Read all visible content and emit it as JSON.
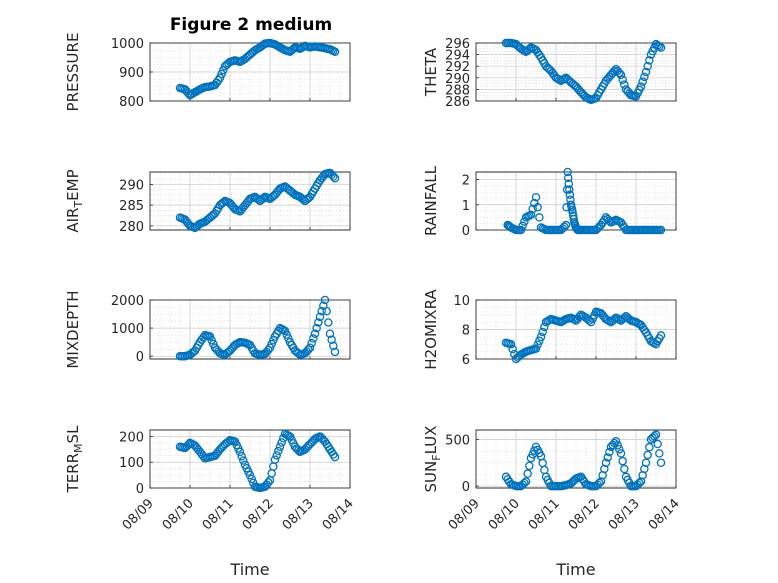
{
  "figure_title": "Figure 2 medium",
  "colors": {
    "marker": "#0072BD",
    "axis": "#262626",
    "grid": "#d9d9d9",
    "background": "#ffffff"
  },
  "chart_data": [
    {
      "type": "scatter",
      "ylabel": "PRESSURE",
      "ylabel_sub": "",
      "ylabel_tail": "",
      "xlabel": "",
      "xlim": [
        "08/09",
        "08/14"
      ],
      "xticks": [
        "08/09",
        "08/10",
        "08/11",
        "08/12",
        "08/13",
        "08/14"
      ],
      "x_tick_labels_shown": false,
      "ylim": [
        800,
        1000
      ],
      "yticks": [
        800,
        900,
        1000
      ],
      "grid": true,
      "minor_grid": true,
      "x": [
        "08/09 18:00",
        "08/09 21:00",
        "08/10 00:00",
        "08/10 03:00",
        "08/10 06:00",
        "08/10 09:00",
        "08/10 12:00",
        "08/10 15:00",
        "08/10 18:00",
        "08/10 21:00",
        "08/11 00:00",
        "08/11 03:00",
        "08/11 06:00",
        "08/11 09:00",
        "08/11 12:00",
        "08/11 15:00",
        "08/11 18:00",
        "08/11 21:00",
        "08/12 00:00",
        "08/12 03:00",
        "08/12 06:00",
        "08/12 09:00",
        "08/12 12:00",
        "08/12 15:00",
        "08/12 18:00",
        "08/12 21:00",
        "08/13 00:00",
        "08/13 03:00",
        "08/13 06:00",
        "08/13 09:00",
        "08/13 12:00",
        "08/13 15:00"
      ],
      "y": [
        845,
        840,
        820,
        830,
        840,
        848,
        850,
        855,
        880,
        920,
        935,
        940,
        935,
        945,
        960,
        975,
        985,
        998,
        1000,
        995,
        985,
        975,
        970,
        985,
        980,
        990,
        985,
        988,
        985,
        982,
        978,
        970
      ]
    },
    {
      "type": "scatter",
      "ylabel": "THETA",
      "ylabel_sub": "",
      "ylabel_tail": "",
      "xlabel": "",
      "xlim": [
        "08/09",
        "08/14"
      ],
      "xticks": [
        "08/09",
        "08/10",
        "08/11",
        "08/12",
        "08/13",
        "08/14"
      ],
      "x_tick_labels_shown": false,
      "ylim": [
        286,
        296
      ],
      "yticks": [
        286,
        288,
        290,
        292,
        294,
        296
      ],
      "grid": true,
      "minor_grid": true,
      "x": [
        "08/09 18:00",
        "08/09 21:00",
        "08/10 00:00",
        "08/10 03:00",
        "08/10 06:00",
        "08/10 09:00",
        "08/10 12:00",
        "08/10 15:00",
        "08/10 18:00",
        "08/10 21:00",
        "08/11 00:00",
        "08/11 03:00",
        "08/11 06:00",
        "08/11 09:00",
        "08/11 12:00",
        "08/11 15:00",
        "08/11 18:00",
        "08/11 21:00",
        "08/12 00:00",
        "08/12 03:00",
        "08/12 06:00",
        "08/12 09:00",
        "08/12 12:00",
        "08/12 15:00",
        "08/12 18:00",
        "08/12 21:00",
        "08/13 00:00",
        "08/13 03:00",
        "08/13 06:00",
        "08/13 09:00",
        "08/13 12:00",
        "08/13 15:00"
      ],
      "y": [
        296,
        296,
        295.8,
        295,
        294.5,
        295.2,
        294.8,
        293.5,
        292,
        291.2,
        290,
        289.5,
        290,
        289.2,
        288.5,
        287.5,
        286.6,
        286.2,
        286.5,
        288,
        289.5,
        290.5,
        291.5,
        290.5,
        288,
        287,
        286.8,
        288.5,
        291,
        294,
        295.8,
        295.2
      ]
    },
    {
      "type": "scatter",
      "ylabel": "AIR",
      "ylabel_sub": "T",
      "ylabel_tail": "EMP",
      "xlabel": "",
      "xlim": [
        "08/09",
        "08/14"
      ],
      "xticks": [
        "08/09",
        "08/10",
        "08/11",
        "08/12",
        "08/13",
        "08/14"
      ],
      "x_tick_labels_shown": false,
      "ylim": [
        279,
        293
      ],
      "yticks": [
        280,
        285,
        290
      ],
      "grid": true,
      "minor_grid": true,
      "x": [
        "08/09 18:00",
        "08/09 21:00",
        "08/10 00:00",
        "08/10 03:00",
        "08/10 06:00",
        "08/10 09:00",
        "08/10 12:00",
        "08/10 15:00",
        "08/10 18:00",
        "08/10 21:00",
        "08/11 00:00",
        "08/11 03:00",
        "08/11 06:00",
        "08/11 09:00",
        "08/11 12:00",
        "08/11 15:00",
        "08/11 18:00",
        "08/11 21:00",
        "08/12 00:00",
        "08/12 03:00",
        "08/12 06:00",
        "08/12 09:00",
        "08/12 12:00",
        "08/12 15:00",
        "08/12 18:00",
        "08/12 21:00",
        "08/13 00:00",
        "08/13 03:00",
        "08/13 06:00",
        "08/13 09:00",
        "08/13 12:00",
        "08/13 15:00"
      ],
      "y": [
        282,
        281.5,
        280,
        279.5,
        280.5,
        281,
        282,
        283,
        285,
        286,
        285.5,
        284,
        283.5,
        285,
        286.5,
        287,
        286,
        287,
        286.5,
        287.5,
        289,
        289.5,
        288.5,
        287.5,
        287,
        286,
        287,
        289,
        291,
        292.5,
        292.8,
        291.5
      ]
    },
    {
      "type": "scatter",
      "ylabel": "RAINFALL",
      "ylabel_sub": "",
      "ylabel_tail": "",
      "xlabel": "",
      "xlim": [
        "08/09",
        "08/14"
      ],
      "xticks": [
        "08/09",
        "08/10",
        "08/11",
        "08/12",
        "08/13",
        "08/14"
      ],
      "x_tick_labels_shown": false,
      "ylim": [
        0,
        2.3
      ],
      "yticks": [
        0,
        1,
        2
      ],
      "grid": true,
      "minor_grid": true,
      "x": [
        "08/09 19:00",
        "08/09 21:00",
        "08/10 00:00",
        "08/10 03:00",
        "08/10 06:00",
        "08/10 09:00",
        "08/10 12:00",
        "08/10 15:00",
        "08/10 18:00",
        "08/10 21:00",
        "08/11 00:00",
        "08/11 03:00",
        "08/11 06:00",
        "08/11 07:00",
        "08/11 08:00",
        "08/11 09:00",
        "08/11 10:00",
        "08/11 11:00",
        "08/11 12:00",
        "08/11 13:00",
        "08/11 15:00",
        "08/11 18:00",
        "08/11 21:00",
        "08/12 00:00",
        "08/12 03:00",
        "08/12 06:00",
        "08/12 09:00",
        "08/12 12:00",
        "08/12 15:00",
        "08/12 18:00",
        "08/12 21:00",
        "08/13 00:00",
        "08/13 03:00",
        "08/13 06:00",
        "08/13 09:00",
        "08/13 12:00",
        "08/13 15:00"
      ],
      "y": [
        0.2,
        0.1,
        0,
        0,
        0.5,
        0.6,
        1.3,
        0.1,
        0,
        0,
        0,
        0,
        0.2,
        2.3,
        1.6,
        1.0,
        0.7,
        0.3,
        0.1,
        0,
        0,
        0,
        0,
        0,
        0.2,
        0.5,
        0.3,
        0.4,
        0.3,
        0,
        0,
        0,
        0,
        0,
        0,
        0,
        0
      ]
    },
    {
      "type": "scatter",
      "ylabel": "MIXDEPTH",
      "ylabel_sub": "",
      "ylabel_tail": "",
      "xlabel": "",
      "xlim": [
        "08/09",
        "08/14"
      ],
      "xticks": [
        "08/09",
        "08/10",
        "08/11",
        "08/12",
        "08/13",
        "08/14"
      ],
      "x_tick_labels_shown": false,
      "ylim": [
        -100,
        2000
      ],
      "yticks": [
        0,
        1000,
        2000
      ],
      "grid": true,
      "minor_grid": true,
      "x": [
        "08/09 18:00",
        "08/09 21:00",
        "08/10 00:00",
        "08/10 03:00",
        "08/10 06:00",
        "08/10 09:00",
        "08/10 12:00",
        "08/10 15:00",
        "08/10 18:00",
        "08/10 21:00",
        "08/11 00:00",
        "08/11 03:00",
        "08/11 06:00",
        "08/11 09:00",
        "08/11 12:00",
        "08/11 15:00",
        "08/11 18:00",
        "08/11 21:00",
        "08/12 00:00",
        "08/12 03:00",
        "08/12 06:00",
        "08/12 09:00",
        "08/12 12:00",
        "08/12 15:00",
        "08/12 18:00",
        "08/12 21:00",
        "08/13 00:00",
        "08/13 03:00",
        "08/13 06:00",
        "08/13 09:00",
        "08/13 12:00",
        "08/13 15:00"
      ],
      "y": [
        0,
        0,
        50,
        200,
        500,
        750,
        700,
        300,
        100,
        50,
        200,
        400,
        500,
        480,
        400,
        100,
        50,
        80,
        300,
        700,
        1000,
        900,
        500,
        200,
        50,
        100,
        300,
        800,
        1400,
        2000,
        800,
        150
      ]
    },
    {
      "type": "scatter",
      "ylabel": "H2OMIXRA",
      "ylabel_sub": "",
      "ylabel_tail": "",
      "xlabel": "",
      "xlim": [
        "08/09",
        "08/14"
      ],
      "xticks": [
        "08/09",
        "08/10",
        "08/11",
        "08/12",
        "08/13",
        "08/14"
      ],
      "x_tick_labels_shown": false,
      "ylim": [
        6,
        10
      ],
      "yticks": [
        6,
        8,
        10
      ],
      "grid": true,
      "minor_grid": true,
      "x": [
        "08/09 18:00",
        "08/09 21:00",
        "08/10 00:00",
        "08/10 03:00",
        "08/10 06:00",
        "08/10 09:00",
        "08/10 12:00",
        "08/10 15:00",
        "08/10 18:00",
        "08/10 21:00",
        "08/11 00:00",
        "08/11 03:00",
        "08/11 06:00",
        "08/11 09:00",
        "08/11 12:00",
        "08/11 15:00",
        "08/11 18:00",
        "08/11 21:00",
        "08/12 00:00",
        "08/12 03:00",
        "08/12 06:00",
        "08/12 09:00",
        "08/12 12:00",
        "08/12 15:00",
        "08/12 18:00",
        "08/12 21:00",
        "08/13 00:00",
        "08/13 03:00",
        "08/13 06:00",
        "08/13 09:00",
        "08/13 12:00",
        "08/13 15:00"
      ],
      "y": [
        7.1,
        7.0,
        6.0,
        6.3,
        6.5,
        6.6,
        6.7,
        7.5,
        8.5,
        8.7,
        8.6,
        8.5,
        8.7,
        8.8,
        8.6,
        9.0,
        8.8,
        8.5,
        9.2,
        9.1,
        8.7,
        8.5,
        8.8,
        8.6,
        8.9,
        8.6,
        8.5,
        8.3,
        7.8,
        7.2,
        7.0,
        7.6
      ]
    },
    {
      "type": "scatter",
      "ylabel": "TERR",
      "ylabel_sub": "M",
      "ylabel_tail": "SL",
      "xlabel": "Time",
      "xlim": [
        "08/09",
        "08/14"
      ],
      "xticks": [
        "08/09",
        "08/10",
        "08/11",
        "08/12",
        "08/13",
        "08/14"
      ],
      "x_tick_labels_shown": true,
      "ylim": [
        0,
        225
      ],
      "yticks": [
        0,
        100,
        200
      ],
      "grid": true,
      "minor_grid": true,
      "x": [
        "08/09 18:00",
        "08/09 21:00",
        "08/10 00:00",
        "08/10 03:00",
        "08/10 06:00",
        "08/10 09:00",
        "08/10 12:00",
        "08/10 15:00",
        "08/10 18:00",
        "08/10 21:00",
        "08/11 00:00",
        "08/11 03:00",
        "08/11 06:00",
        "08/11 09:00",
        "08/11 12:00",
        "08/11 15:00",
        "08/11 18:00",
        "08/11 21:00",
        "08/12 00:00",
        "08/12 03:00",
        "08/12 06:00",
        "08/12 09:00",
        "08/12 12:00",
        "08/12 15:00",
        "08/12 18:00",
        "08/12 21:00",
        "08/13 00:00",
        "08/13 03:00",
        "08/13 06:00",
        "08/13 09:00",
        "08/13 12:00",
        "08/13 15:00"
      ],
      "y": [
        160,
        155,
        175,
        165,
        140,
        115,
        120,
        125,
        150,
        170,
        185,
        180,
        140,
        90,
        50,
        5,
        0,
        5,
        30,
        110,
        160,
        210,
        200,
        160,
        140,
        150,
        170,
        190,
        200,
        180,
        150,
        120
      ]
    },
    {
      "type": "scatter",
      "ylabel": "SUN",
      "ylabel_sub": "F",
      "ylabel_tail": "LUX",
      "xlabel": "Time",
      "xlim": [
        "08/09",
        "08/14"
      ],
      "xticks": [
        "08/09",
        "08/10",
        "08/11",
        "08/12",
        "08/13",
        "08/14"
      ],
      "x_tick_labels_shown": true,
      "ylim": [
        -20,
        600
      ],
      "yticks": [
        0,
        500
      ],
      "grid": true,
      "minor_grid": true,
      "x": [
        "08/09 18:00",
        "08/09 21:00",
        "08/10 00:00",
        "08/10 03:00",
        "08/10 06:00",
        "08/10 09:00",
        "08/10 12:00",
        "08/10 15:00",
        "08/10 18:00",
        "08/10 21:00",
        "08/11 00:00",
        "08/11 03:00",
        "08/11 06:00",
        "08/11 09:00",
        "08/11 12:00",
        "08/11 15:00",
        "08/11 18:00",
        "08/11 21:00",
        "08/12 00:00",
        "08/12 03:00",
        "08/12 06:00",
        "08/12 09:00",
        "08/12 12:00",
        "08/12 15:00",
        "08/12 18:00",
        "08/12 21:00",
        "08/13 00:00",
        "08/13 03:00",
        "08/13 06:00",
        "08/13 09:00",
        "08/13 12:00",
        "08/13 15:00"
      ],
      "y": [
        100,
        20,
        0,
        0,
        50,
        300,
        420,
        320,
        100,
        0,
        0,
        0,
        10,
        30,
        80,
        100,
        20,
        0,
        0,
        50,
        250,
        420,
        480,
        350,
        100,
        0,
        0,
        50,
        250,
        500,
        550,
        250
      ]
    }
  ]
}
